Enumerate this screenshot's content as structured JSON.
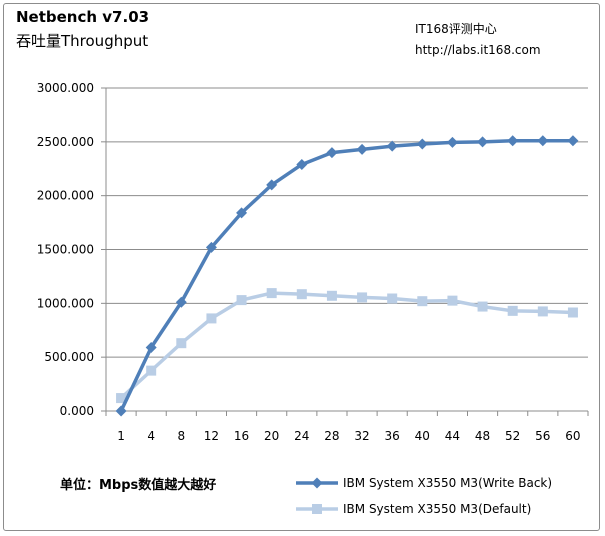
{
  "header": {
    "title": "Netbench v7.03",
    "subtitle": "吞吐量Throughput",
    "source_name": "IT168评测中心",
    "source_url": "http://labs.it168.com"
  },
  "footer": {
    "unit_note": "单位：Mbps数值越大越好"
  },
  "colors": {
    "write_back": "#4f7fb8",
    "default": "#b9cde5",
    "grid": "#8c8c8c"
  },
  "chart_data": {
    "type": "line",
    "title": "Netbench v7.03",
    "xlabel": "",
    "ylabel": "",
    "x": [
      "1",
      "4",
      "8",
      "12",
      "16",
      "20",
      "24",
      "28",
      "32",
      "36",
      "40",
      "44",
      "48",
      "52",
      "56",
      "60"
    ],
    "ylim": [
      0,
      3000
    ],
    "yticks": [
      "0.000",
      "500.000",
      "1000.000",
      "1500.000",
      "2000.000",
      "2500.000",
      "3000.000"
    ],
    "grid": "horizontal",
    "legend_position": "bottom-right",
    "series": [
      {
        "name": "IBM System X3550 M3(Write Back)",
        "marker": "diamond",
        "values": [
          0,
          590,
          1010,
          1520,
          1840,
          2100,
          2290,
          2400,
          2430,
          2460,
          2480,
          2495,
          2500,
          2510,
          2510,
          2510
        ]
      },
      {
        "name": "IBM System X3550 M3(Default)",
        "marker": "square",
        "values": [
          120,
          375,
          630,
          860,
          1030,
          1095,
          1085,
          1070,
          1055,
          1045,
          1020,
          1025,
          970,
          930,
          925,
          915
        ]
      }
    ]
  }
}
